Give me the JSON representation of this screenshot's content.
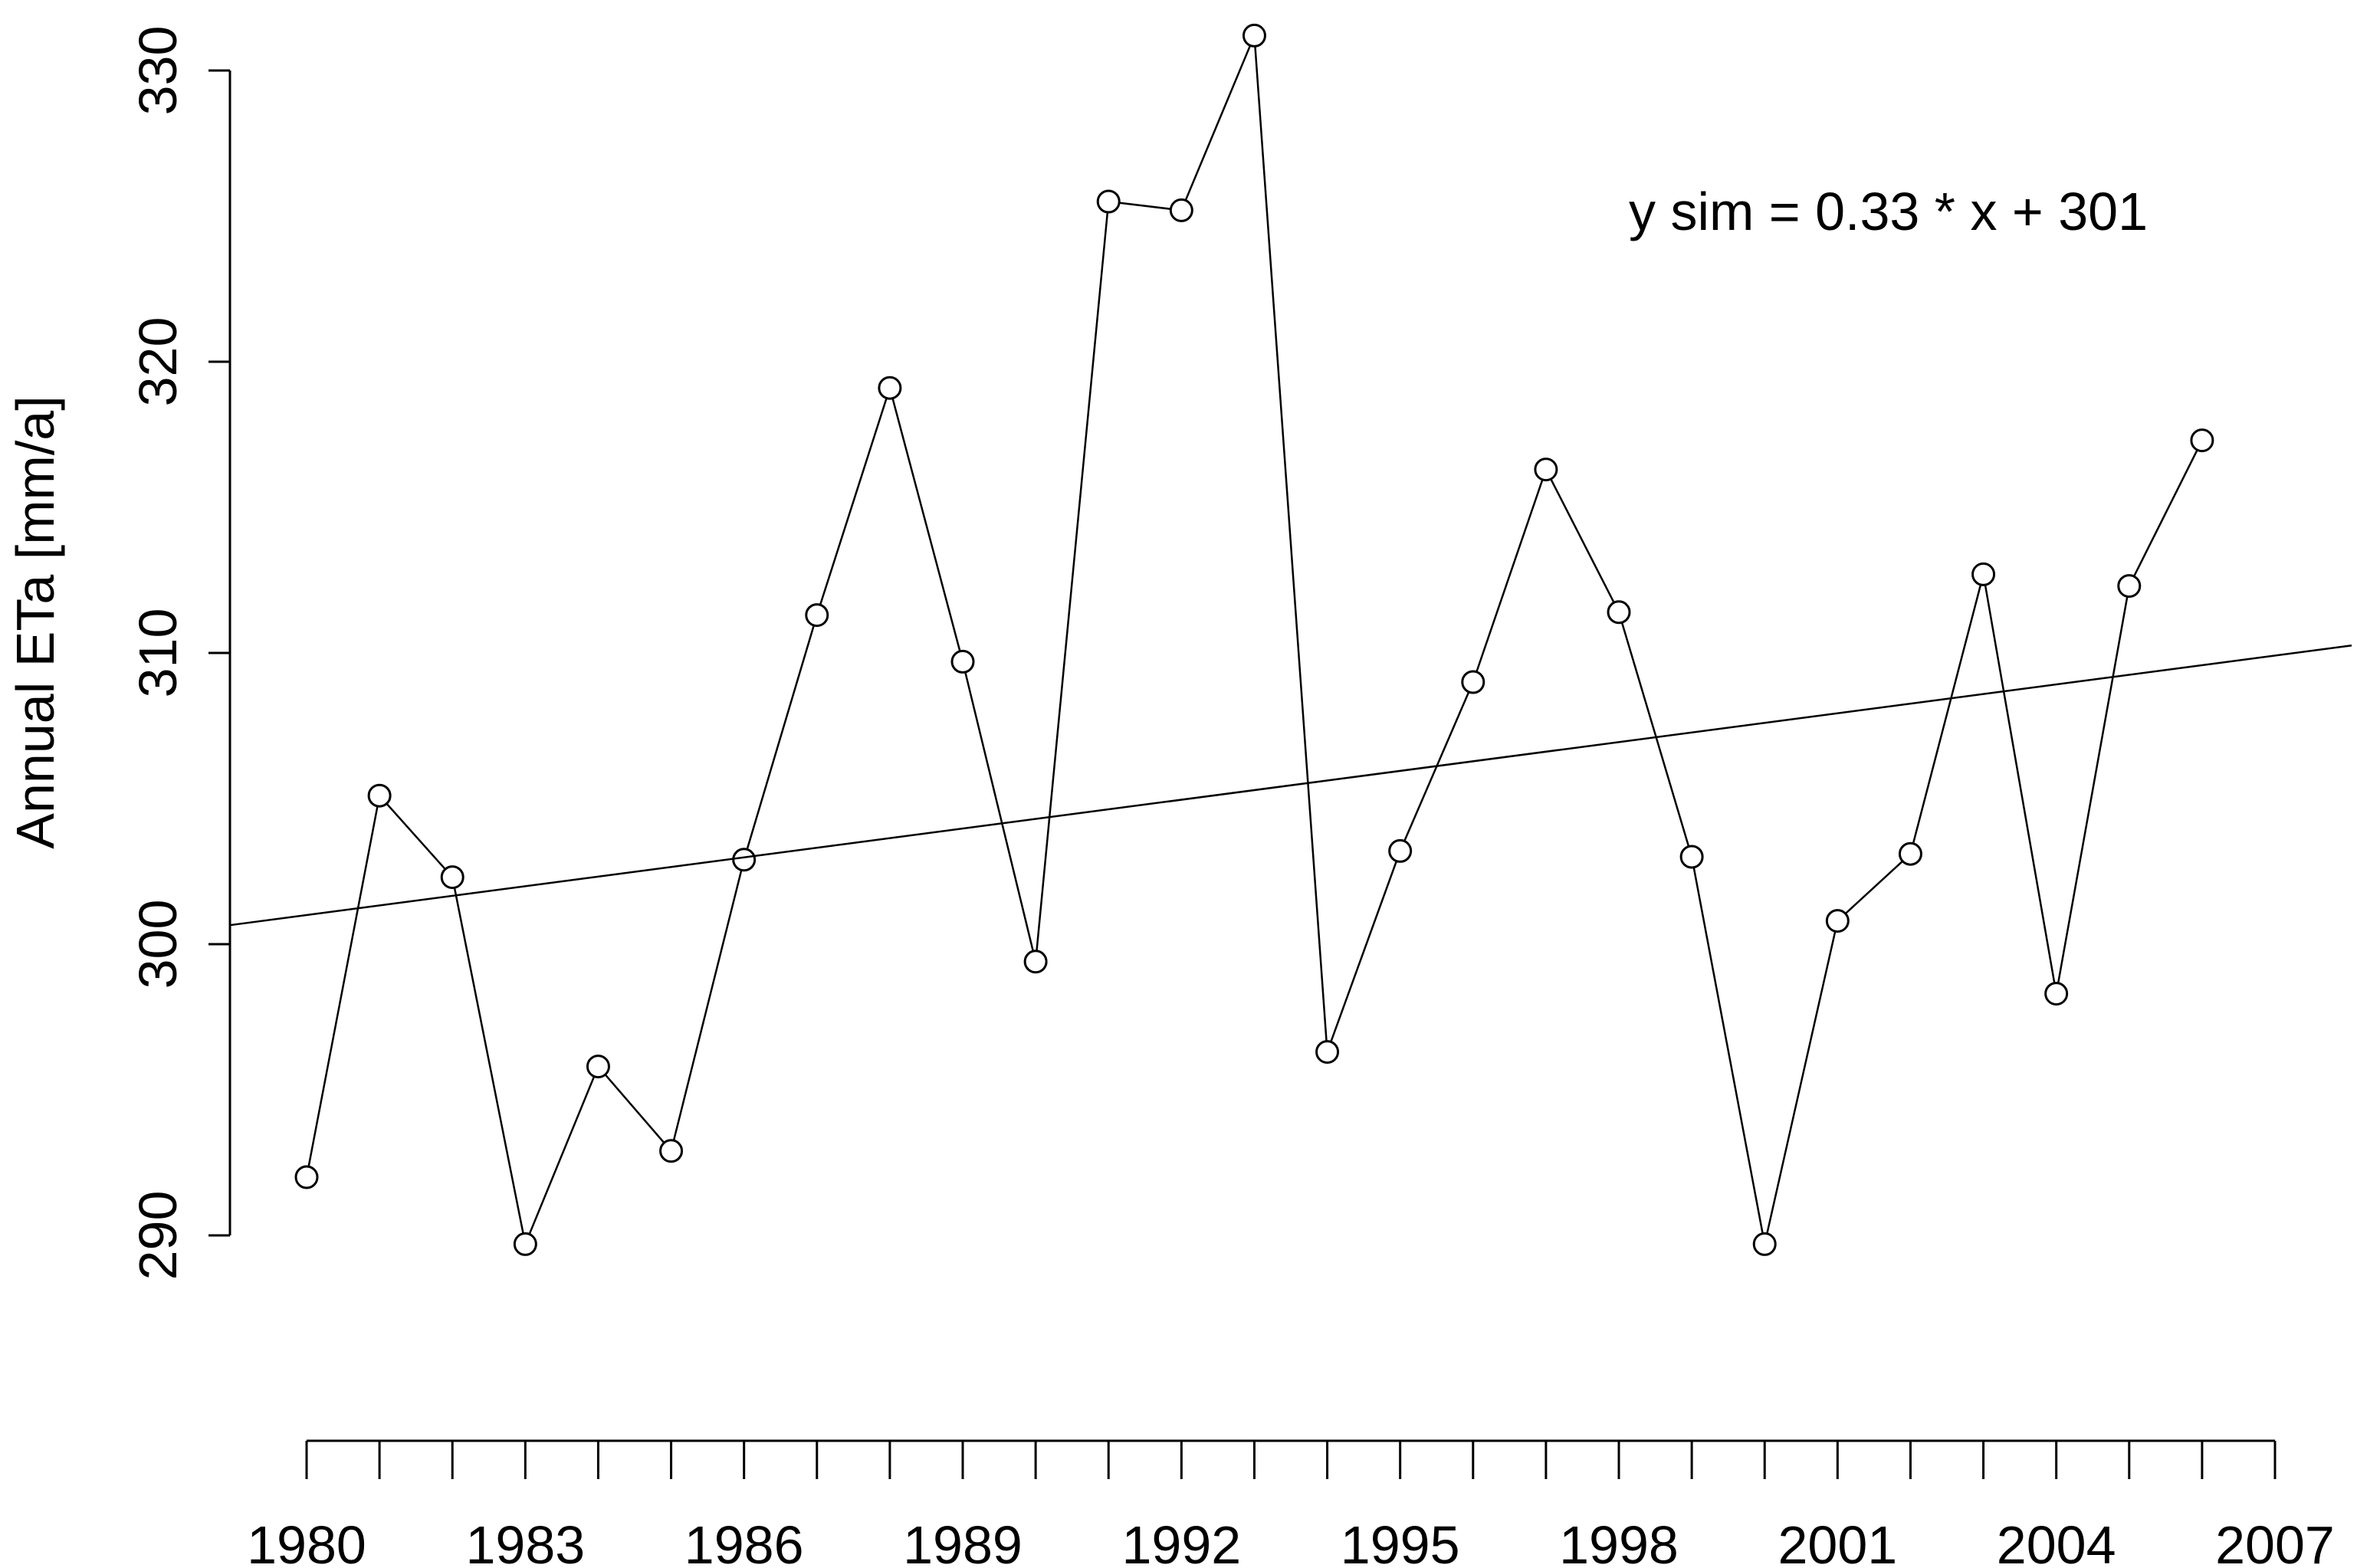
{
  "chart_data": {
    "type": "line",
    "title": "",
    "xlabel": "",
    "ylabel": "Annual ETa [mm/a]",
    "xlim": [
      1980,
      2007
    ],
    "ylim": [
      290,
      330
    ],
    "x_ticks": [
      1980,
      1983,
      1986,
      1989,
      1992,
      1995,
      1998,
      2001,
      2004,
      2007
    ],
    "y_ticks": [
      290,
      300,
      310,
      320,
      330
    ],
    "grid": false,
    "legend": "none",
    "annotation": "y sim =  0.33 * x + 301",
    "series": [
      {
        "x": [
          1980,
          1981,
          1982,
          1983,
          1984,
          1985,
          1986,
          1987,
          1988,
          1989,
          1990,
          1991,
          1992,
          1993,
          1994,
          1995,
          1996,
          1997,
          1998,
          1999,
          2000,
          2001,
          2002,
          2003,
          2004,
          2005,
          2006
        ],
        "values": [
          292.0,
          305.1,
          302.3,
          289.7,
          295.8,
          292.9,
          302.9,
          311.3,
          319.1,
          309.7,
          299.4,
          325.5,
          325.2,
          331.2,
          296.3,
          303.2,
          309.0,
          316.3,
          311.4,
          303.0,
          289.7,
          300.8,
          303.1,
          312.7,
          298.3,
          312.3,
          317.3
        ]
      },
      {
        "type": "trend",
        "slope": 0.33,
        "intercept": 301
      }
    ]
  }
}
